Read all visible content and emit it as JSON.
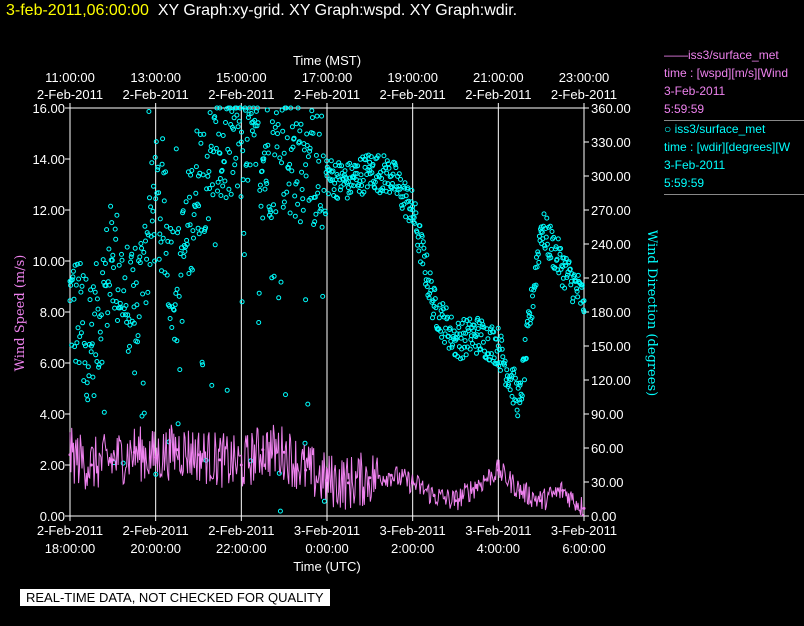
{
  "header": {
    "timestamp": "3-feb-2011,06:00:00",
    "graphs": "XY Graph:xy-grid.  XY Graph:wspd.  XY Graph:wdir."
  },
  "legend": {
    "wspd": {
      "line": "——iss3/surface_met",
      "var": "time : [wspd][m/s][Wind",
      "date": "3-Feb-2011",
      "time": "5:59:59"
    },
    "wdir": {
      "line": "○  iss3/surface_met",
      "var": "time : [wdir][degrees][W",
      "date": "3-Feb-2011",
      "time": "5:59:59"
    }
  },
  "notice": "REAL-TIME DATA, NOT CHECKED FOR QUALITY",
  "colors": {
    "wspd": "#ee82ee",
    "wdir": "#00ffff",
    "grid": "#ffffff",
    "background": "#000000"
  },
  "chart_data": {
    "type": "scatter",
    "top_axis": {
      "title": "Time (MST)",
      "ticks": [
        {
          "time": "11:00:00",
          "date": "2-Feb-2011"
        },
        {
          "time": "13:00:00",
          "date": "2-Feb-2011"
        },
        {
          "time": "15:00:00",
          "date": "2-Feb-2011"
        },
        {
          "time": "17:00:00",
          "date": "2-Feb-2011"
        },
        {
          "time": "19:00:00",
          "date": "2-Feb-2011"
        },
        {
          "time": "21:00:00",
          "date": "2-Feb-2011"
        },
        {
          "time": "23:00:00",
          "date": "2-Feb-2011"
        }
      ]
    },
    "bottom_axis": {
      "title": "Time (UTC)",
      "ticks": [
        {
          "date": "2-Feb-2011",
          "time": "18:00:00"
        },
        {
          "date": "2-Feb-2011",
          "time": "20:00:00"
        },
        {
          "date": "2-Feb-2011",
          "time": "22:00:00"
        },
        {
          "date": "3-Feb-2011",
          "time": "0:00:00"
        },
        {
          "date": "3-Feb-2011",
          "time": "2:00:00"
        },
        {
          "date": "3-Feb-2011",
          "time": "4:00:00"
        },
        {
          "date": "3-Feb-2011",
          "time": "6:00:00"
        }
      ],
      "range_hours_utc": [
        "2-Feb-2011 18:00",
        "3-Feb-2011 06:00"
      ]
    },
    "left_axis": {
      "title": "Wind Speed (m/s)",
      "ylim": [
        0,
        16
      ],
      "ticks": [
        "0.00",
        "2.00",
        "4.00",
        "6.00",
        "8.00",
        "10.00",
        "12.00",
        "14.00",
        "16.00"
      ]
    },
    "right_axis": {
      "title": "Wind Direction (degrees)",
      "ylim": [
        0,
        360
      ],
      "ticks": [
        "0.00",
        "30.00",
        "60.00",
        "90.00",
        "120.00",
        "150.00",
        "180.00",
        "210.00",
        "240.00",
        "270.00",
        "300.00",
        "330.00",
        "360.00"
      ]
    },
    "grid": "vertical lines at major ticks",
    "series": [
      {
        "name": "wspd",
        "style": "line",
        "axis": "left",
        "x": [
          "2-Feb-2011 18:00",
          "2-Feb-2011 18:30",
          "2-Feb-2011 19:00",
          "2-Feb-2011 19:30",
          "2-Feb-2011 20:00",
          "2-Feb-2011 20:30",
          "2-Feb-2011 21:00",
          "2-Feb-2011 21:30",
          "2-Feb-2011 22:00",
          "2-Feb-2011 22:30",
          "2-Feb-2011 23:00",
          "2-Feb-2011 23:30",
          "3-Feb-2011 00:00",
          "3-Feb-2011 00:30",
          "3-Feb-2011 01:00",
          "3-Feb-2011 01:30",
          "3-Feb-2011 02:00",
          "3-Feb-2011 02:30",
          "3-Feb-2011 03:00",
          "3-Feb-2011 03:30",
          "3-Feb-2011 04:00",
          "3-Feb-2011 04:30",
          "3-Feb-2011 05:00",
          "3-Feb-2011 05:30",
          "3-Feb-2011 06:00"
        ],
        "y": [
          2.4,
          2.0,
          2.2,
          2.5,
          2.3,
          2.6,
          2.4,
          2.2,
          2.0,
          2.6,
          2.5,
          1.8,
          1.4,
          1.3,
          1.5,
          1.6,
          1.3,
          0.8,
          0.6,
          1.2,
          1.8,
          1.0,
          0.6,
          1.0,
          0.3
        ]
      },
      {
        "name": "wdir",
        "style": "markers",
        "axis": "right",
        "x": [
          "2-Feb-2011 18:00",
          "2-Feb-2011 18:30",
          "2-Feb-2011 19:00",
          "2-Feb-2011 19:30",
          "2-Feb-2011 20:00",
          "2-Feb-2011 20:30",
          "2-Feb-2011 21:00",
          "2-Feb-2011 21:30",
          "2-Feb-2011 22:00",
          "2-Feb-2011 22:30",
          "2-Feb-2011 23:00",
          "2-Feb-2011 23:30",
          "3-Feb-2011 00:00",
          "3-Feb-2011 00:30",
          "3-Feb-2011 01:00",
          "3-Feb-2011 01:30",
          "3-Feb-2011 02:00",
          "3-Feb-2011 02:30",
          "3-Feb-2011 03:00",
          "3-Feb-2011 03:30",
          "3-Feb-2011 04:00",
          "3-Feb-2011 04:30",
          "3-Feb-2011 05:00",
          "3-Feb-2011 05:30",
          "3-Feb-2011 06:00"
        ],
        "y": [
          190,
          150,
          230,
          170,
          280,
          200,
          300,
          320,
          330,
          315,
          320,
          310,
          300,
          295,
          305,
          300,
          270,
          185,
          155,
          160,
          150,
          100,
          255,
          220,
          190
        ]
      }
    ]
  }
}
